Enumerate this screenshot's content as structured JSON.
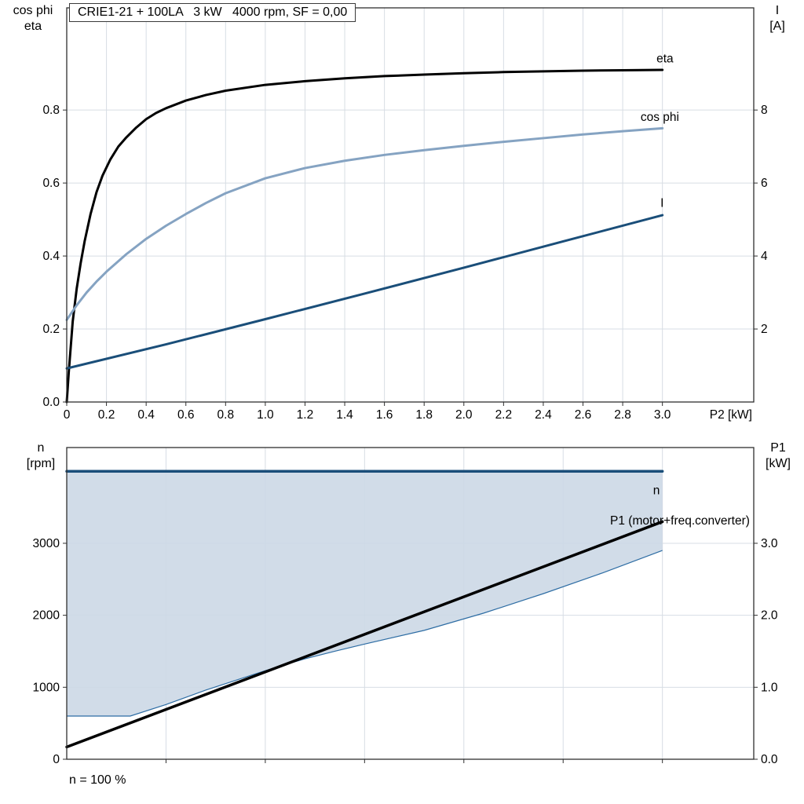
{
  "chart_data": [
    {
      "type": "line",
      "title": "CRIE1-21 + 100LA   3 kW   4000 rpm, SF = 0,00",
      "left_axis_title_lines": [
        "cos phi",
        "eta"
      ],
      "right_axis_title_lines": [
        "I",
        "[A]"
      ],
      "xlabel": "P2 [kW]",
      "xlim": [
        0,
        3.46
      ],
      "ylim_left": [
        0,
        1.08
      ],
      "ylim_right": [
        0,
        10.8
      ],
      "grid_color": "#d7dde4",
      "grid_x": [
        0.2,
        0.4,
        0.6,
        0.8,
        1.0,
        1.2,
        1.4,
        1.6,
        1.8,
        2.0,
        2.2,
        2.4,
        2.6,
        2.8,
        3.0
      ],
      "xtick_values": [
        0,
        0.2,
        0.4,
        0.6,
        0.8,
        1.0,
        1.2,
        1.4,
        1.6,
        1.8,
        2.0,
        2.2,
        2.4,
        2.6,
        2.8,
        3.0
      ],
      "xtick_labels": [
        "0",
        "0.2",
        "0.4",
        "0.6",
        "0.8",
        "1.0",
        "1.2",
        "1.4",
        "1.6",
        "1.8",
        "2.0",
        "2.2",
        "2.4",
        "2.6",
        "2.8",
        "3.0"
      ],
      "ytick_left_values": [
        0,
        0.2,
        0.4,
        0.6,
        0.8
      ],
      "ytick_left_labels": [
        "0.0",
        "0.2",
        "0.4",
        "0.6",
        "0.8"
      ],
      "ytick_right_values": [
        2,
        4,
        6,
        8
      ],
      "ytick_right_labels": [
        "2",
        "4",
        "6",
        "8"
      ],
      "series": [
        {
          "name": "eta",
          "axis": "left",
          "color": "#000000",
          "width": 3,
          "x": [
            0,
            0.01,
            0.03,
            0.05,
            0.07,
            0.09,
            0.12,
            0.15,
            0.18,
            0.22,
            0.26,
            0.3,
            0.35,
            0.4,
            0.45,
            0.5,
            0.6,
            0.7,
            0.8,
            1.0,
            1.2,
            1.4,
            1.6,
            1.8,
            2.0,
            2.2,
            2.4,
            2.6,
            2.8,
            3.0
          ],
          "values": [
            0,
            0.08,
            0.22,
            0.31,
            0.38,
            0.44,
            0.515,
            0.575,
            0.62,
            0.665,
            0.7,
            0.725,
            0.752,
            0.775,
            0.792,
            0.805,
            0.826,
            0.841,
            0.853,
            0.869,
            0.879,
            0.887,
            0.893,
            0.897,
            0.901,
            0.904,
            0.906,
            0.908,
            0.909,
            0.91
          ]
        },
        {
          "name": "cos phi",
          "axis": "left",
          "color": "#85a3c2",
          "width": 3,
          "x": [
            0,
            0.05,
            0.1,
            0.15,
            0.2,
            0.3,
            0.4,
            0.5,
            0.6,
            0.7,
            0.8,
            1.0,
            1.2,
            1.4,
            1.6,
            1.8,
            2.0,
            2.2,
            2.4,
            2.6,
            2.8,
            3.0
          ],
          "values": [
            0.225,
            0.265,
            0.3,
            0.33,
            0.357,
            0.405,
            0.447,
            0.483,
            0.515,
            0.545,
            0.572,
            0.613,
            0.641,
            0.661,
            0.677,
            0.69,
            0.702,
            0.713,
            0.723,
            0.733,
            0.742,
            0.75
          ]
        },
        {
          "name": "I",
          "axis": "right",
          "color": "#1a4e79",
          "width": 3,
          "x": [
            0,
            0.5,
            1.0,
            1.5,
            2.0,
            2.5,
            3.0
          ],
          "values": [
            0.92,
            1.58,
            2.27,
            2.97,
            3.68,
            4.4,
            5.12
          ]
        }
      ],
      "labels": [
        {
          "text": "eta",
          "x": 2.97,
          "y": 0.93,
          "axis": "left",
          "anchor": "start",
          "color": "#000000"
        },
        {
          "text": "cos phi",
          "x": 2.89,
          "y": 0.77,
          "axis": "left",
          "anchor": "start",
          "color": "#85a3c2"
        },
        {
          "text": "I",
          "x": 2.99,
          "y": 5.35,
          "axis": "right",
          "anchor": "start",
          "color": "#1a4e79"
        }
      ]
    },
    {
      "type": "line",
      "caption": "n = 100 %",
      "left_axis_title_lines": [
        "n",
        "[rpm]"
      ],
      "right_axis_title_lines": [
        "P1",
        "[kW]"
      ],
      "xlim": [
        0,
        3.46
      ],
      "ylim_left": [
        0,
        4330
      ],
      "ylim_right": [
        0,
        4.33
      ],
      "grid_color": "#d7dde4",
      "grid_x": [
        0.5,
        1.0,
        1.5,
        2.0,
        2.5,
        3.0
      ],
      "xtick_values": [
        0.5,
        1.0,
        1.5,
        2.0,
        2.5,
        3.0
      ],
      "xtick_labels": [],
      "ytick_left_values": [
        0,
        1000,
        2000,
        3000
      ],
      "ytick_left_labels": [
        "0",
        "1000",
        "2000",
        "3000"
      ],
      "ytick_right_values": [
        0,
        1,
        2,
        3
      ],
      "ytick_right_labels": [
        "0.0",
        "1.0",
        "2.0",
        "3.0"
      ],
      "area": {
        "axis": "left",
        "fill_color": "#ccd8e5",
        "fill_opacity": 0.9,
        "edge_color": "#2e6da4",
        "upper": 4000,
        "x": [
          0,
          0.32,
          0.5,
          0.7,
          0.9,
          1.0,
          1.1,
          1.2,
          1.35,
          1.5,
          1.8,
          2.1,
          2.4,
          2.7,
          3.0
        ],
        "lower": [
          600,
          600,
          760,
          960,
          1140,
          1230,
          1315,
          1395,
          1500,
          1600,
          1790,
          2030,
          2300,
          2590,
          2900
        ]
      },
      "series": [
        {
          "name": "P1 (motor+freq.converter)",
          "axis": "right",
          "color": "#000000",
          "width": 3.5,
          "x": [
            0,
            3.0
          ],
          "values": [
            0.17,
            3.3
          ]
        },
        {
          "name": "n",
          "axis": "left",
          "color": "#1a4e79",
          "width": 3.5,
          "x": [
            0,
            3.0
          ],
          "values": [
            4000,
            4000
          ]
        }
      ],
      "labels": [
        {
          "text": "n",
          "x": 2.97,
          "y": 3680,
          "axis": "left",
          "anchor": "middle",
          "color": "#1a4e79"
        },
        {
          "text": "P1 (motor+freq.converter)",
          "x": 3.44,
          "y": 3.26,
          "axis": "right",
          "anchor": "end",
          "color": "#000000"
        }
      ]
    }
  ]
}
